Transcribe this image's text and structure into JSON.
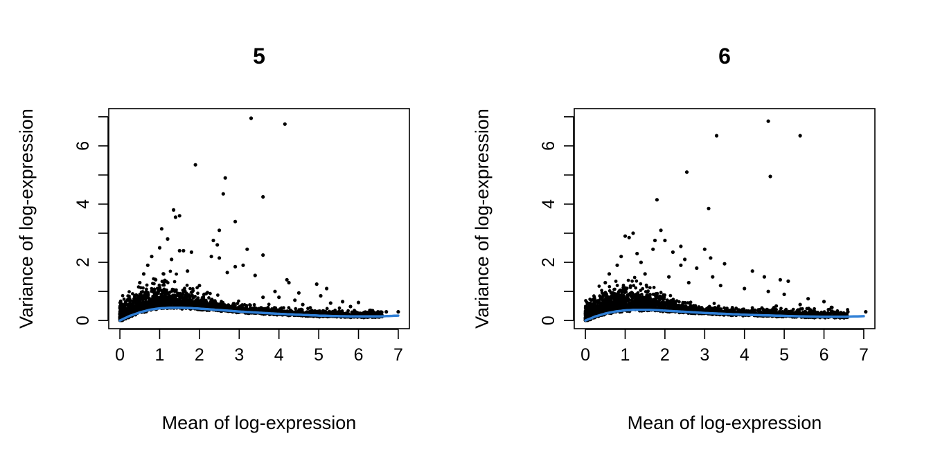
{
  "colors": {
    "points": "#000000",
    "trend": "#2F7FD6",
    "axis": "#000000",
    "background": "#ffffff"
  },
  "chart_data": [
    {
      "type": "scatter",
      "title": "5",
      "xlabel": "Mean of log-expression",
      "ylabel": "Variance of log-expression",
      "xlim": [
        0,
        7
      ],
      "ylim": [
        0,
        7
      ],
      "xticks": [
        0,
        1,
        2,
        3,
        4,
        5,
        6,
        7
      ],
      "yticks": [
        0,
        2,
        4,
        6
      ],
      "yminor_ticks": [
        1,
        3,
        5,
        7
      ],
      "grid": false,
      "legend": "none",
      "series": [
        {
          "points": [
            [
              3.3,
              6.95
            ],
            [
              4.15,
              6.75
            ],
            [
              1.9,
              5.35
            ],
            [
              2.65,
              4.9
            ],
            [
              2.6,
              4.35
            ],
            [
              3.6,
              4.25
            ],
            [
              1.35,
              3.8
            ],
            [
              1.5,
              3.6
            ],
            [
              1.4,
              3.55
            ],
            [
              2.9,
              3.4
            ],
            [
              1.05,
              3.15
            ],
            [
              2.5,
              3.1
            ],
            [
              1.2,
              2.8
            ],
            [
              2.35,
              2.75
            ],
            [
              2.45,
              2.6
            ],
            [
              3.2,
              2.45
            ],
            [
              1.0,
              2.5
            ],
            [
              1.5,
              2.4
            ],
            [
              1.6,
              2.4
            ],
            [
              1.8,
              2.35
            ],
            [
              2.3,
              2.2
            ],
            [
              2.5,
              2.15
            ],
            [
              3.6,
              2.25
            ],
            [
              0.8,
              2.2
            ],
            [
              1.3,
              2.1
            ],
            [
              2.9,
              1.85
            ],
            [
              3.1,
              1.9
            ],
            [
              2.7,
              1.65
            ],
            [
              3.4,
              1.55
            ],
            [
              4.2,
              1.4
            ],
            [
              4.25,
              1.3
            ],
            [
              4.95,
              1.25
            ],
            [
              5.2,
              1.1
            ],
            [
              3.9,
              1.0
            ],
            [
              4.5,
              0.95
            ],
            [
              5.05,
              0.85
            ],
            [
              4.0,
              0.8
            ],
            [
              4.4,
              0.7
            ],
            [
              5.6,
              0.65
            ],
            [
              6.0,
              0.62
            ],
            [
              5.3,
              0.6
            ],
            [
              4.6,
              0.55
            ],
            [
              5.8,
              0.48
            ],
            [
              6.3,
              0.35
            ],
            [
              6.7,
              0.3
            ],
            [
              7.0,
              0.3
            ],
            [
              0.6,
              1.6
            ],
            [
              0.9,
              1.4
            ],
            [
              2.0,
              1.2
            ],
            [
              3.6,
              0.8
            ],
            [
              0.7,
              1.9
            ],
            [
              1.1,
              1.6
            ],
            [
              1.7,
              1.7
            ],
            [
              0.5,
              1.3
            ]
          ]
        }
      ],
      "trend": {
        "x": [
          0,
          0.25,
          0.5,
          0.75,
          1,
          1.25,
          1.5,
          1.75,
          2,
          2.5,
          3,
          3.5,
          4,
          4.5,
          5,
          5.5,
          6,
          6.5,
          7
        ],
        "y": [
          0,
          0.16,
          0.28,
          0.37,
          0.42,
          0.44,
          0.44,
          0.43,
          0.41,
          0.36,
          0.31,
          0.27,
          0.23,
          0.2,
          0.17,
          0.15,
          0.14,
          0.14,
          0.17
        ]
      }
    },
    {
      "type": "scatter",
      "title": "6",
      "xlabel": "Mean of log-expression",
      "ylabel": "Variance of log-expression",
      "xlim": [
        0,
        7
      ],
      "ylim": [
        0,
        7
      ],
      "xticks": [
        0,
        1,
        2,
        3,
        4,
        5,
        6,
        7
      ],
      "yticks": [
        0,
        2,
        4,
        6
      ],
      "yminor_ticks": [
        1,
        3,
        5,
        7
      ],
      "grid": false,
      "legend": "none",
      "series": [
        {
          "points": [
            [
              4.6,
              6.85
            ],
            [
              3.3,
              6.35
            ],
            [
              5.4,
              6.35
            ],
            [
              2.55,
              5.1
            ],
            [
              4.65,
              4.95
            ],
            [
              1.8,
              4.15
            ],
            [
              3.1,
              3.85
            ],
            [
              1.9,
              3.1
            ],
            [
              1.2,
              3.0
            ],
            [
              1.0,
              2.9
            ],
            [
              1.1,
              2.85
            ],
            [
              1.75,
              2.75
            ],
            [
              2.0,
              2.75
            ],
            [
              2.4,
              2.55
            ],
            [
              1.7,
              2.45
            ],
            [
              3.0,
              2.45
            ],
            [
              2.2,
              2.35
            ],
            [
              0.9,
              2.2
            ],
            [
              1.3,
              2.3
            ],
            [
              2.5,
              2.1
            ],
            [
              3.15,
              2.15
            ],
            [
              2.4,
              1.9
            ],
            [
              3.5,
              1.95
            ],
            [
              2.8,
              1.8
            ],
            [
              4.2,
              1.7
            ],
            [
              4.5,
              1.5
            ],
            [
              3.2,
              1.5
            ],
            [
              4.9,
              1.4
            ],
            [
              5.1,
              1.35
            ],
            [
              3.4,
              1.2
            ],
            [
              4.0,
              1.1
            ],
            [
              4.6,
              1.0
            ],
            [
              5.0,
              0.9
            ],
            [
              5.6,
              0.75
            ],
            [
              6.0,
              0.65
            ],
            [
              5.4,
              0.55
            ],
            [
              4.8,
              0.5
            ],
            [
              6.2,
              0.45
            ],
            [
              6.6,
              0.3
            ],
            [
              7.05,
              0.3
            ],
            [
              6.5,
              0.2
            ],
            [
              0.6,
              1.6
            ],
            [
              0.8,
              1.9
            ],
            [
              1.5,
              1.6
            ],
            [
              2.1,
              1.5
            ],
            [
              1.4,
              2.0
            ],
            [
              0.5,
              1.3
            ],
            [
              2.6,
              1.3
            ]
          ]
        }
      ],
      "trend": {
        "x": [
          0,
          0.25,
          0.5,
          0.75,
          1,
          1.25,
          1.5,
          1.75,
          2,
          2.5,
          3,
          3.5,
          4,
          4.5,
          5,
          5.5,
          6,
          6.5,
          7
        ],
        "y": [
          0,
          0.14,
          0.24,
          0.31,
          0.35,
          0.37,
          0.37,
          0.36,
          0.34,
          0.3,
          0.26,
          0.23,
          0.2,
          0.18,
          0.16,
          0.14,
          0.13,
          0.13,
          0.15
        ]
      }
    }
  ]
}
